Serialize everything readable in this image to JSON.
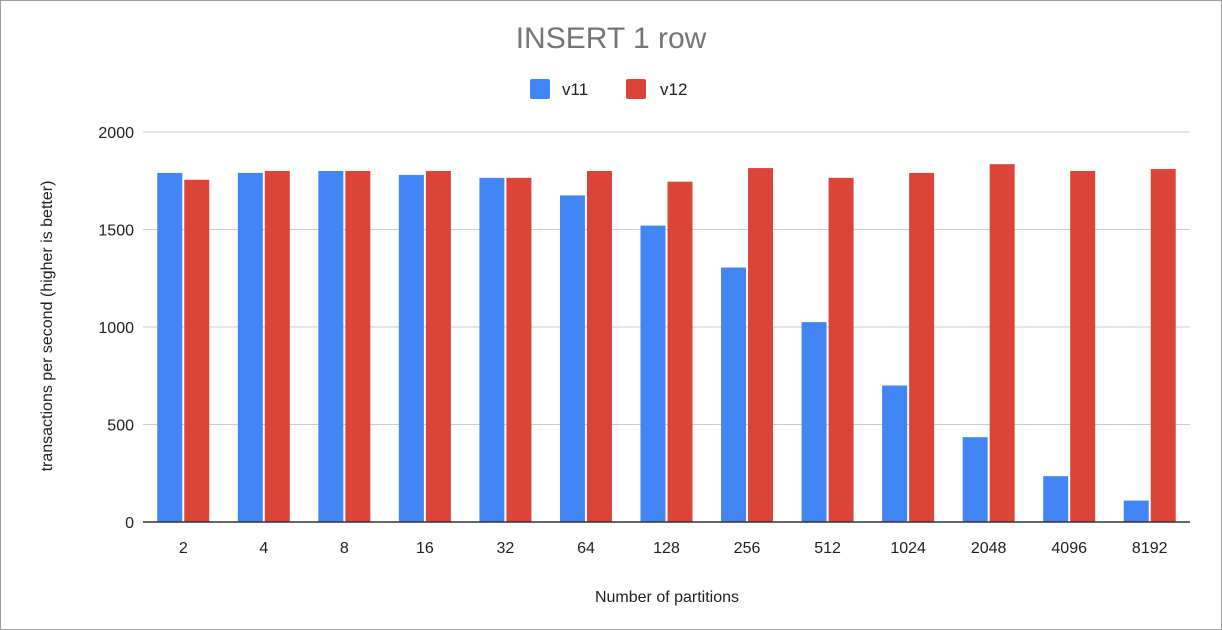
{
  "chart_data": {
    "type": "bar",
    "title": "INSERT 1 row",
    "xlabel": "Number of partitions",
    "ylabel": "transactions per second (higher is better)",
    "ylim": [
      0,
      2000
    ],
    "yticks": [
      0,
      500,
      1000,
      1500,
      2000
    ],
    "grid": true,
    "legend_position": "top",
    "categories": [
      "2",
      "4",
      "8",
      "16",
      "32",
      "64",
      "128",
      "256",
      "512",
      "1024",
      "2048",
      "4096",
      "8192"
    ],
    "series": [
      {
        "name": "v11",
        "color": "#4285f4",
        "values": [
          1790,
          1790,
          1800,
          1780,
          1765,
          1675,
          1520,
          1305,
          1025,
          700,
          435,
          235,
          110
        ]
      },
      {
        "name": "v12",
        "color": "#db4437",
        "values": [
          1755,
          1800,
          1800,
          1800,
          1765,
          1800,
          1745,
          1815,
          1765,
          1790,
          1835,
          1800,
          1810
        ]
      }
    ]
  }
}
